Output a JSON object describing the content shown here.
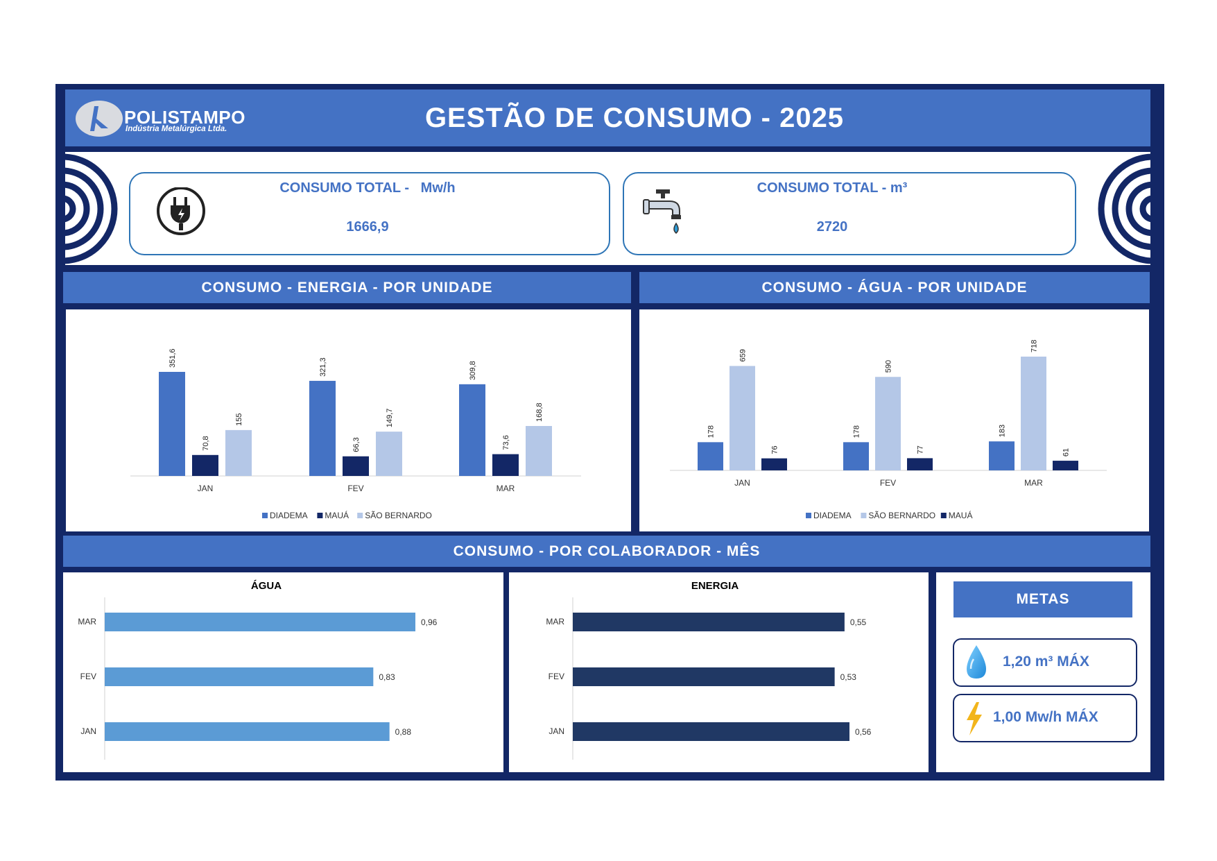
{
  "header": {
    "logo_name": "POLISTAMPO",
    "logo_subtitle": "Indústria Metalúrgica Ltda.",
    "title": "GESTÃO DE CONSUMO - 2025"
  },
  "kpis": {
    "energy": {
      "title": "CONSUMO TOTAL -   Mw/h",
      "value": "1666,9",
      "icon": "power-plug-icon"
    },
    "water": {
      "title": "CONSUMO TOTAL - m³",
      "value": "2720",
      "icon": "water-faucet-icon"
    }
  },
  "sections": {
    "energy_units": "CONSUMO - ENERGIA - POR UNIDADE",
    "water_units": "CONSUMO - ÁGUA - POR UNIDADE",
    "per_employee": "CONSUMO - POR COLABORADOR - MÊS"
  },
  "metas": {
    "title": "METAS",
    "water": "1,20 m³ MÁX",
    "energy": "1,00 Mw/h MÁX"
  },
  "colors": {
    "dark_navy": "#132766",
    "accent_blue": "#4472c4",
    "light_blue": "#b4c7e7",
    "navy_series": "#1f2f66",
    "water_bar": "#5b9bd5",
    "energy_bar": "#203864"
  },
  "chart_data": [
    {
      "id": "energy",
      "type": "bar",
      "categories": [
        "JAN",
        "FEV",
        "MAR"
      ],
      "series": [
        {
          "name": "DIADEMA",
          "values": [
            351.6,
            321.3,
            309.8
          ],
          "labels": [
            "351,6",
            "321,3",
            "309,8"
          ],
          "color": "#4472c4"
        },
        {
          "name": "MAUÁ",
          "values": [
            70.8,
            66.3,
            73.6
          ],
          "labels": [
            "70,8",
            "66,3",
            "73,6"
          ],
          "color": "#132766"
        },
        {
          "name": "SÃO BERNARDO",
          "values": [
            155,
            149.7,
            168.8
          ],
          "labels": [
            "155",
            "149,7",
            "168,8"
          ],
          "color": "#b4c7e7"
        }
      ],
      "legend": "bottom"
    },
    {
      "id": "water",
      "type": "bar",
      "categories": [
        "JAN",
        "FEV",
        "MAR"
      ],
      "series": [
        {
          "name": "DIADEMA",
          "values": [
            178,
            178,
            183
          ],
          "labels": [
            "178",
            "178",
            "183"
          ],
          "color": "#4472c4"
        },
        {
          "name": "SÃO BERNARDO",
          "values": [
            659,
            590,
            718
          ],
          "labels": [
            "659",
            "590",
            "718"
          ],
          "color": "#b4c7e7"
        },
        {
          "name": "MAUÁ",
          "values": [
            76,
            77,
            61
          ],
          "labels": [
            "76",
            "77",
            "61"
          ],
          "color": "#132766"
        }
      ],
      "legend": "bottom"
    },
    {
      "id": "agua_colab",
      "type": "bar",
      "orientation": "horizontal",
      "title": "ÁGUA",
      "categories": [
        "MAR",
        "FEV",
        "JAN"
      ],
      "values": [
        0.96,
        0.83,
        0.88
      ],
      "labels": [
        "0,96",
        "0,83",
        "0,88"
      ],
      "color": "#5b9bd5"
    },
    {
      "id": "energia_colab",
      "type": "bar",
      "orientation": "horizontal",
      "title": "ENERGIA",
      "categories": [
        "MAR",
        "FEV",
        "JAN"
      ],
      "values": [
        0.55,
        0.53,
        0.56
      ],
      "labels": [
        "0,55",
        "0,53",
        "0,56"
      ],
      "color": "#203864"
    }
  ]
}
